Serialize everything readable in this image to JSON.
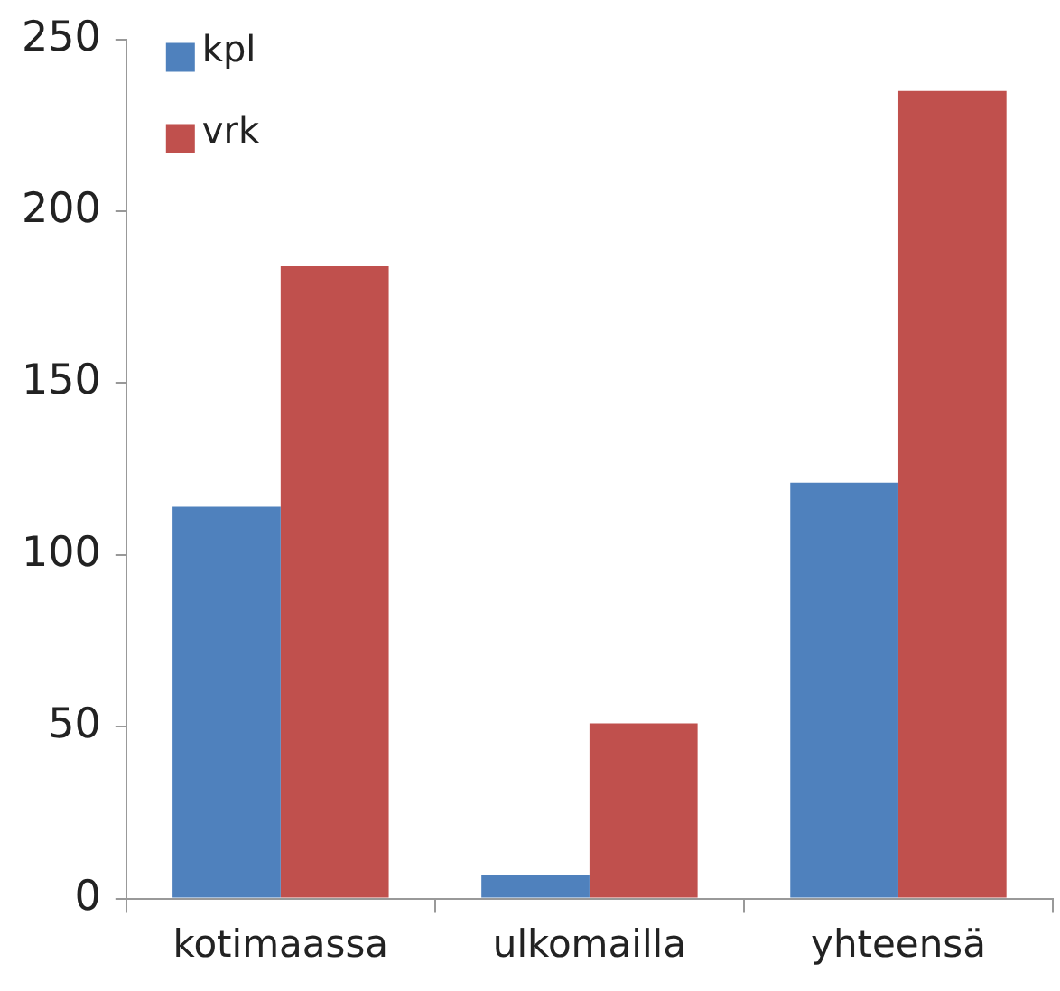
{
  "chart_data": {
    "type": "bar",
    "categories": [
      "kotimaassa",
      "ulkomailla",
      "yhteensä"
    ],
    "series": [
      {
        "name": "kpl",
        "color": "#4f81bd",
        "values": [
          114,
          7,
          121
        ]
      },
      {
        "name": "vrk",
        "color": "#c0504d",
        "values": [
          184,
          51,
          235
        ]
      }
    ],
    "ylim": [
      0,
      250
    ],
    "yticks": [
      0,
      50,
      100,
      150,
      200,
      250
    ],
    "grid": false,
    "legend": "top left"
  }
}
